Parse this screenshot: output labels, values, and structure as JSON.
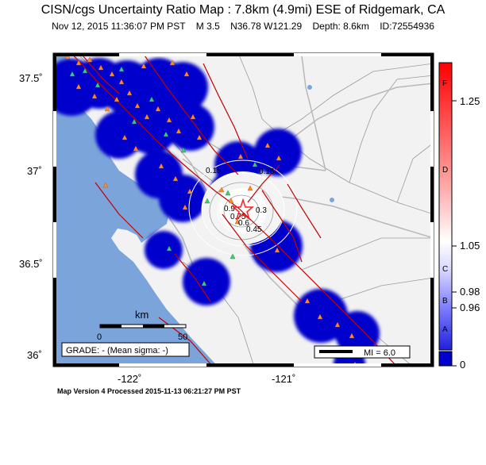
{
  "header": {
    "title": "CISN/cgs Uncertainty Ratio Map : 7.8km (4.9mi) ESE of Ridgemark, CA",
    "subtitle": "Nov 12, 2015 11:36:07 PM PST    M 3.5    N36.78 W121.29    Depth: 8.6km    ID:72554936"
  },
  "axes": {
    "lat_labels": [
      "37.5˚",
      "37˚",
      "36.5˚",
      "36˚"
    ],
    "lon_labels": [
      "-122˚",
      "-121˚"
    ]
  },
  "map": {
    "contour_labels": [
      "0.15",
      "0.15",
      "0.3",
      "0.45",
      "0.6",
      "0.75",
      "0.9"
    ],
    "scale_bar": {
      "unit": "km",
      "tick_start": "0",
      "tick_end": "50"
    },
    "grade_box": "GRADE: - (Mean sigma: -)",
    "mi_legend": "MI = 6.0",
    "colors": {
      "water": "#7ba4db",
      "land": "#f2f2f2",
      "station_blob": "#0000cc",
      "fault": "#c00000",
      "road": "#b4b4b4"
    }
  },
  "colorbar": {
    "grade_letters": [
      "F",
      "D",
      "C",
      "B",
      "A"
    ],
    "values": [
      "1.25",
      "1.05",
      "0.98",
      "0.96",
      "0"
    ]
  },
  "footer": "Map Version 4 Processed 2015-11-13 06:21:27 PM PST"
}
